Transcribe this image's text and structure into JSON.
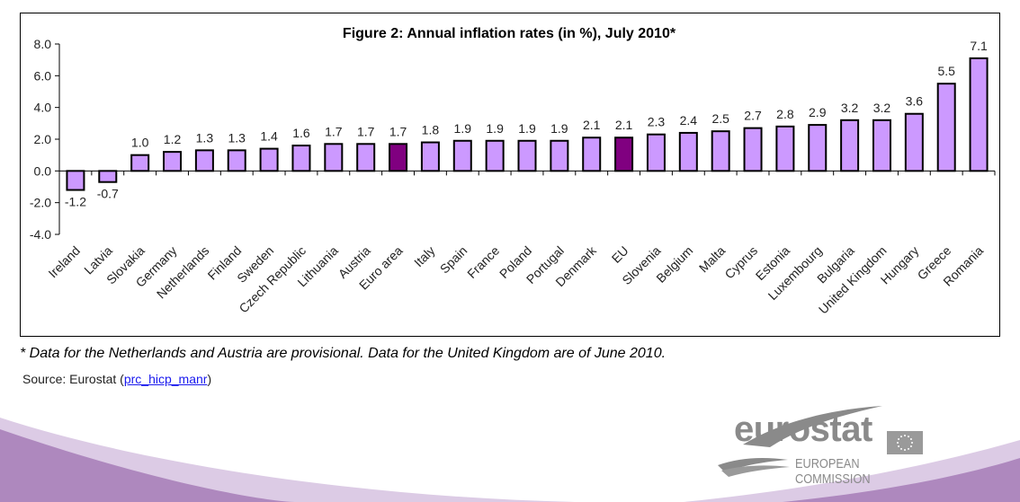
{
  "chart_data": {
    "type": "bar",
    "title": "Figure 2: Annual inflation rates (in %), July 2010*",
    "xlabel": "",
    "ylabel": "",
    "ylim": [
      -4.0,
      8.0
    ],
    "yticks": [
      "8.0",
      "6.0",
      "4.0",
      "2.0",
      "0.0",
      "-2.0",
      "-4.0"
    ],
    "ytick_values": [
      8,
      6,
      4,
      2,
      0,
      -2,
      -4
    ],
    "grid": false,
    "legend": "none",
    "categories": [
      "Ireland",
      "Latvia",
      "Slovakia",
      "Germany",
      "Netherlands",
      "Finland",
      "Sweden",
      "Czech Republic",
      "Lithuania",
      "Austria",
      "Euro area",
      "Italy",
      "Spain",
      "France",
      "Poland",
      "Portugal",
      "Denmark",
      "EU",
      "Slovenia",
      "Belgium",
      "Malta",
      "Cyprus",
      "Estonia",
      "Luxembourg",
      "Bulgaria",
      "United Kingdom",
      "Hungary",
      "Greece",
      "Romania"
    ],
    "values": [
      -1.2,
      -0.7,
      1.0,
      1.2,
      1.3,
      1.3,
      1.4,
      1.6,
      1.7,
      1.7,
      1.7,
      1.8,
      1.9,
      1.9,
      1.9,
      1.9,
      2.1,
      2.1,
      2.3,
      2.4,
      2.5,
      2.7,
      2.8,
      2.9,
      3.2,
      3.2,
      3.6,
      5.5,
      7.1
    ],
    "data_labels": [
      "-1.2",
      "-0.7",
      "1.0",
      "1.2",
      "1.3",
      "1.3",
      "1.4",
      "1.6",
      "1.7",
      "1.7",
      "1.7",
      "1.8",
      "1.9",
      "1.9",
      "1.9",
      "1.9",
      "2.1",
      "2.1",
      "2.3",
      "2.4",
      "2.5",
      "2.7",
      "2.8",
      "2.9",
      "3.2",
      "3.2",
      "3.6",
      "5.5",
      "7.1"
    ],
    "highlighted": [
      "Euro area",
      "EU"
    ],
    "colors": {
      "bar": "#cc99ff",
      "highlight": "#800080",
      "outline": "#000000"
    }
  },
  "footnote": "* Data for the Netherlands and Austria are provisional. Data for the United Kingdom are of June 2010.",
  "source": {
    "prefix": "Source: Eurostat (",
    "link_text": "prc_hicp_manr",
    "suffix": ")"
  },
  "logo": {
    "wordmark": "eurostat",
    "subtitle": "EUROPEAN COMMISSION"
  },
  "theme": {
    "wave_dark": "#ae88be",
    "wave_light": "#dccbe5"
  }
}
